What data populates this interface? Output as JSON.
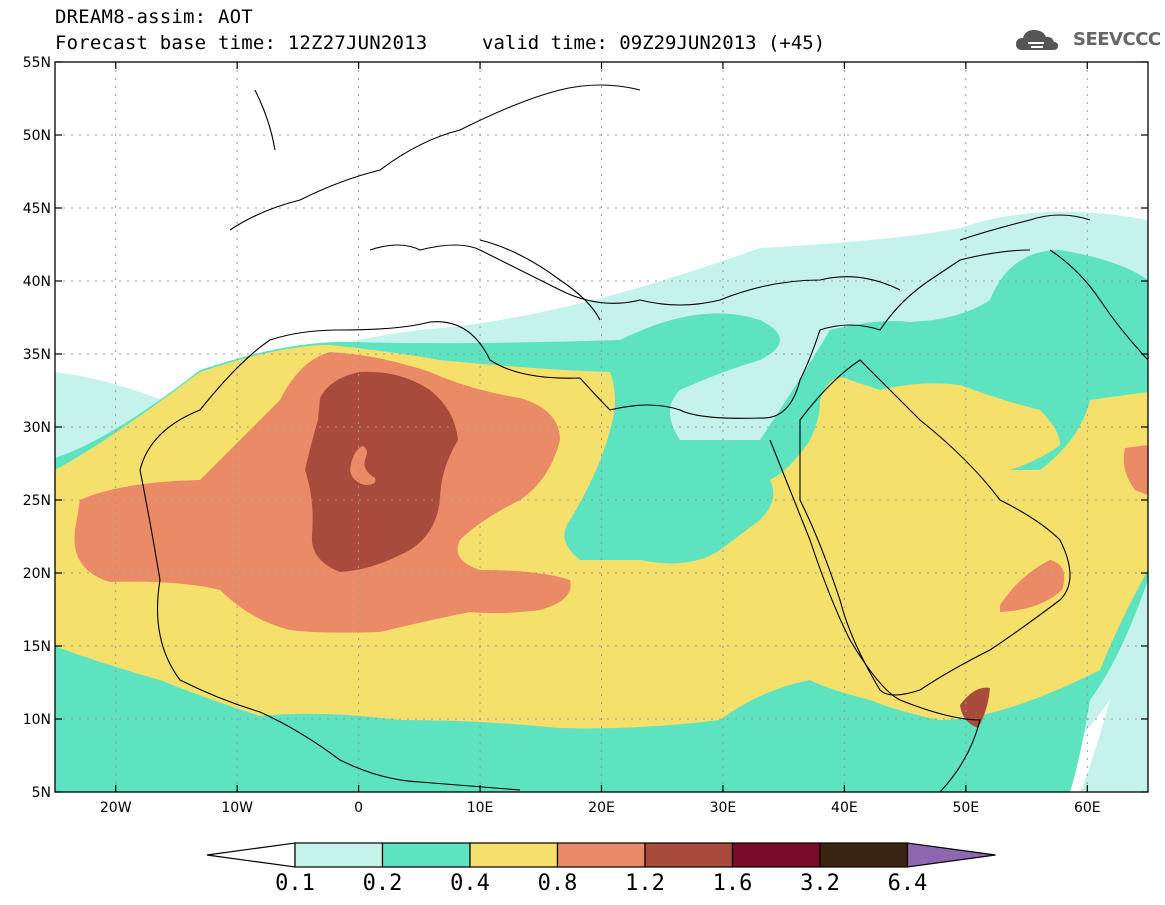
{
  "header": {
    "title_line1": "DREAM8-assim: AOT",
    "title_line2": "Forecast base time: 12Z27JUN2013",
    "valid_time": "valid time: 09Z29JUN2013 (+45)",
    "logo_text": "SEEVCCC"
  },
  "map": {
    "lat_labels": [
      "55N",
      "50N",
      "45N",
      "40N",
      "35N",
      "30N",
      "25N",
      "20N",
      "15N",
      "10N",
      "5N"
    ],
    "lon_labels": [
      "20W",
      "10W",
      "0",
      "10E",
      "20E",
      "30E",
      "40E",
      "50E",
      "60E"
    ],
    "lat_range": [
      5,
      55
    ],
    "lon_range": [
      -25,
      65
    ],
    "colors": {
      "c1": "#c6f2ec",
      "c2": "#5ee3c0",
      "c3": "#f6e06c",
      "c4": "#ea8a66",
      "c5": "#a84a3c",
      "c6": "#7a0c28",
      "c7": "#3a2414",
      "c8": "#8f66b0"
    }
  },
  "colorbar": {
    "labels": [
      "0.1",
      "0.2",
      "0.4",
      "0.8",
      "1.2",
      "1.6",
      "3.2",
      "6.4"
    ]
  }
}
